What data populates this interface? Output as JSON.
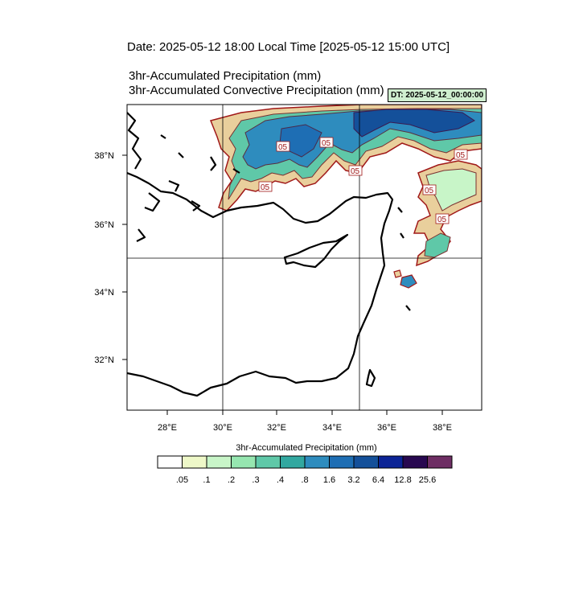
{
  "header": {
    "title": "Date: 2025-05-12  18:00 Local Time [2025-05-12  15:00 UTC]",
    "subtitle_1": "3hr-Accumulated Precipitation   (mm)",
    "subtitle_2": "3hr-Accumulated Convective Precipitation   (mm)",
    "dt_label": "DT: 2025-05-12_00:00:00"
  },
  "map": {
    "lat_ticks": [
      "38°N",
      "36°N",
      "34°N",
      "32°N"
    ],
    "lon_ticks": [
      "28°E",
      "30°E",
      "32°E",
      "34°E",
      "36°E",
      "38°E"
    ],
    "contour_labels": [
      "05",
      "05",
      "05",
      "05",
      "05",
      "05",
      "05"
    ]
  },
  "colorbar": {
    "title": "3hr-Accumulated Precipitation  (mm)",
    "levels": [
      ".05",
      ".1",
      ".2",
      ".3",
      ".4",
      ".8",
      "1.6",
      "3.2",
      "6.4",
      "12.8",
      "25.6"
    ],
    "colors": [
      "#ffffff",
      "#eef8c8",
      "#c8f5c8",
      "#96e6b0",
      "#5fc8a8",
      "#32a8a0",
      "#2e8cbe",
      "#1e6eb4",
      "#14509a",
      "#0c2496",
      "#280850",
      "#6e2e64"
    ]
  }
}
